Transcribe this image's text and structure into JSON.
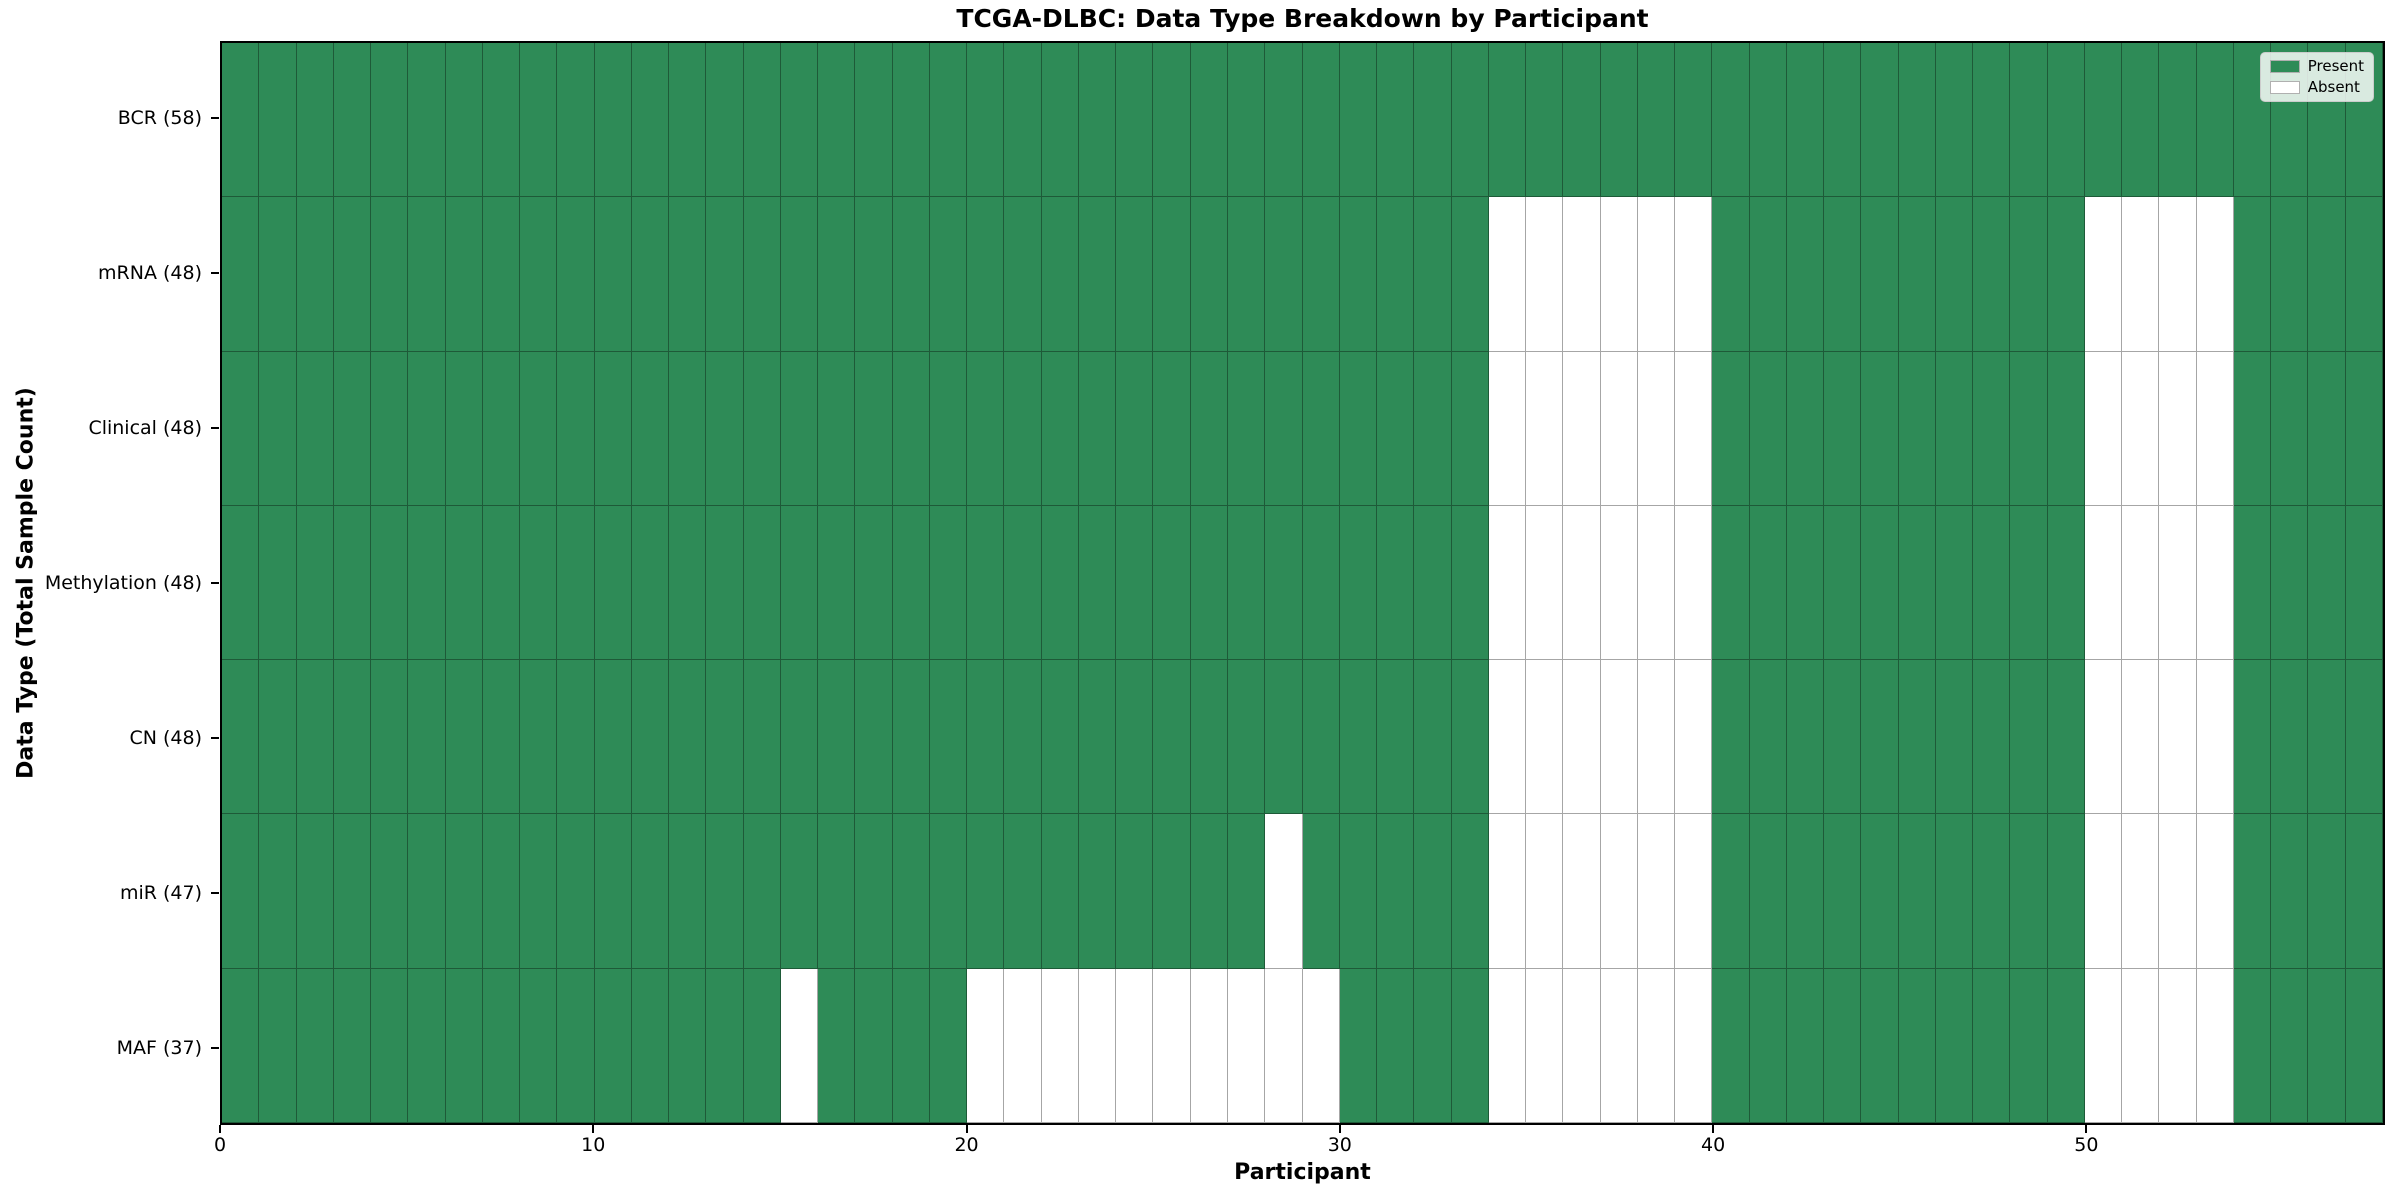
{
  "chart_data": {
    "type": "heatmap",
    "title": "TCGA-DLBC: Data Type Breakdown by Participant",
    "xlabel": "Participant",
    "ylabel": "Data Type (Total Sample Count)",
    "x_ticks": [
      0,
      10,
      20,
      30,
      40,
      50
    ],
    "n_participants": 58,
    "participant_range": [
      0,
      57
    ],
    "colors": {
      "present": "#2e8b57",
      "absent": "#ffffff"
    },
    "legend": [
      {
        "label": "Present",
        "value": "present",
        "color": "#2e8b57"
      },
      {
        "label": "Absent",
        "value": "absent",
        "color": "#ffffff"
      }
    ],
    "rows": [
      {
        "label": "BCR (58)",
        "data_type": "BCR",
        "total_samples": 58,
        "absent_participants": []
      },
      {
        "label": "mRNA (48)",
        "data_type": "mRNA",
        "total_samples": 48,
        "absent_participants": [
          34,
          35,
          36,
          37,
          38,
          39,
          50,
          51,
          52,
          53
        ]
      },
      {
        "label": "Clinical (48)",
        "data_type": "Clinical",
        "total_samples": 48,
        "absent_participants": [
          34,
          35,
          36,
          37,
          38,
          39,
          50,
          51,
          52,
          53
        ]
      },
      {
        "label": "Methylation (48)",
        "data_type": "Methylation",
        "total_samples": 48,
        "absent_participants": [
          34,
          35,
          36,
          37,
          38,
          39,
          50,
          51,
          52,
          53
        ]
      },
      {
        "label": "CN (48)",
        "data_type": "CN",
        "total_samples": 48,
        "absent_participants": [
          34,
          35,
          36,
          37,
          38,
          39,
          50,
          51,
          52,
          53
        ]
      },
      {
        "label": "miR (47)",
        "data_type": "miR",
        "total_samples": 47,
        "absent_participants": [
          28,
          34,
          35,
          36,
          37,
          38,
          39,
          50,
          51,
          52,
          53
        ]
      },
      {
        "label": "MAF (37)",
        "data_type": "MAF",
        "total_samples": 37,
        "absent_participants": [
          15,
          20,
          21,
          22,
          23,
          24,
          25,
          26,
          27,
          28,
          29,
          34,
          35,
          36,
          37,
          38,
          39,
          50,
          51,
          52,
          53
        ]
      }
    ]
  }
}
